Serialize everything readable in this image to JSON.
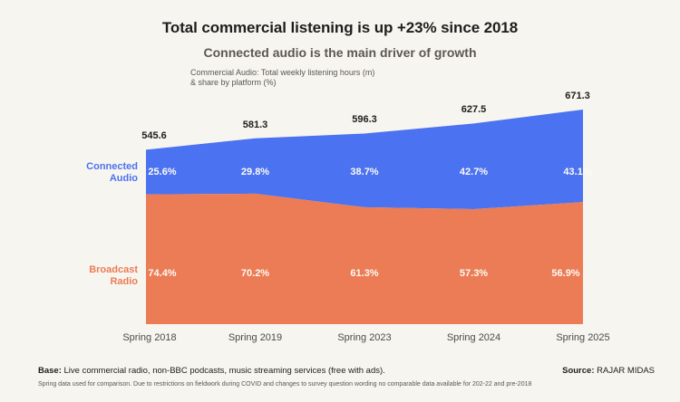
{
  "header": {
    "title": "Total commercial listening is up +23% since 2018",
    "subtitle": "Connected audio is the main driver of growth",
    "note_line1": "Commercial Audio: Total weekly listening hours (m)",
    "note_line2": "& share by platform (%)"
  },
  "chart_data": {
    "type": "area",
    "stacked": true,
    "title": "Commercial Audio: Total weekly listening hours (m) & share by platform (%)",
    "categories": [
      "Spring 2018",
      "Spring 2019",
      "Spring 2023",
      "Spring 2024",
      "Spring 2025"
    ],
    "totals": [
      545.6,
      581.3,
      596.3,
      627.5,
      671.3
    ],
    "series": [
      {
        "name": "Connected Audio",
        "label_lines": [
          "Connected",
          "Audio"
        ],
        "share_pct": [
          25.6,
          29.8,
          38.7,
          42.7,
          43.1
        ],
        "color": "#4B72F0"
      },
      {
        "name": "Broadcast Radio",
        "label_lines": [
          "Broadcast",
          "Radio"
        ],
        "share_pct": [
          74.4,
          70.2,
          61.3,
          57.3,
          56.9
        ],
        "color": "#EC7C55"
      }
    ],
    "grid": false,
    "legend_position": "left",
    "y_baseline": 0
  },
  "footer": {
    "base_label": "Base:",
    "base_text": "Live commercial radio, non-BBC podcasts, music streaming services (free with ads).",
    "note": "Spring data used for comparison. Due to restrictions on fieldwork during COVID and changes to survey question wording no comparable data available for 202-22 and pre-2018",
    "source_label": "Source:",
    "source_text": "RAJAR MIDAS"
  },
  "colors": {
    "background": "#F7F5F0",
    "title_text": "#1E1E1C",
    "subtitle_text": "#5B5852",
    "value_label_text": "#1E1E1C",
    "pct_label_text": "#FCFAF5",
    "axis_label_text": "#4B4B45"
  }
}
